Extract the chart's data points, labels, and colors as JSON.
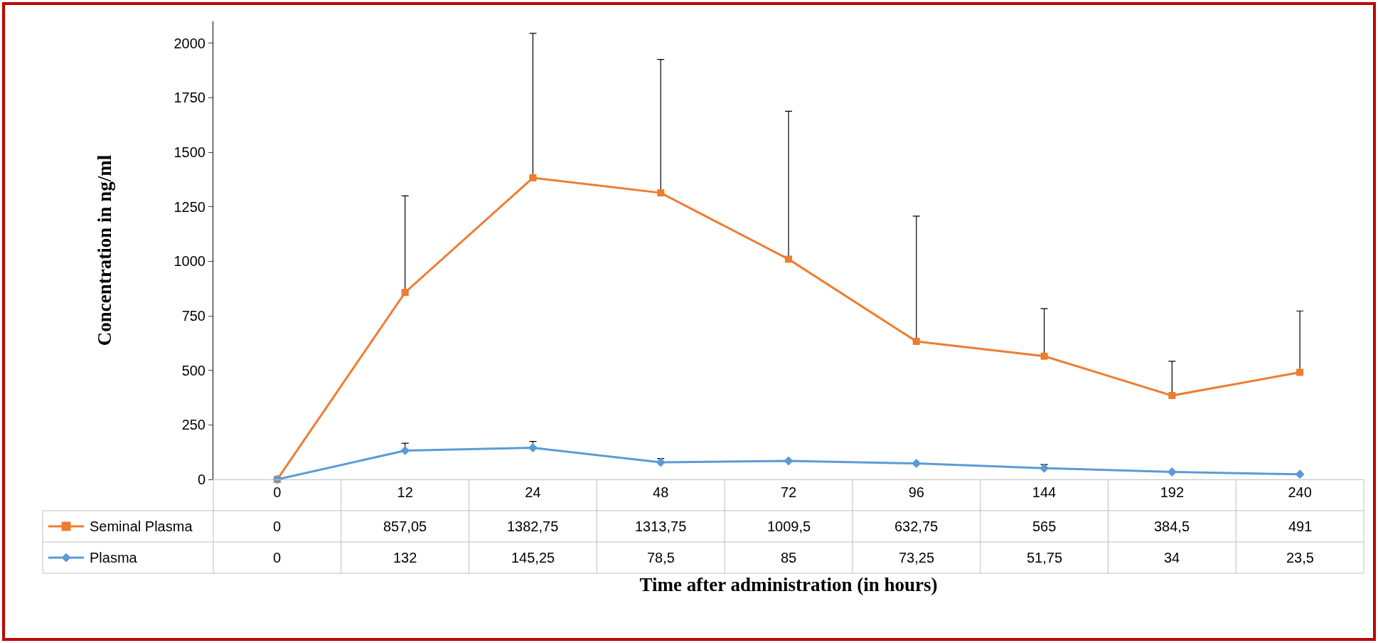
{
  "chart_data": {
    "type": "line",
    "xlabel": "Time after administration (in hours)",
    "ylabel": "Concentration in ng/ml",
    "categories": [
      "0",
      "12",
      "24",
      "48",
      "72",
      "96",
      "144",
      "192",
      "240"
    ],
    "series": [
      {
        "name": "Seminal Plasma",
        "color": "#ed7d31",
        "marker": "square",
        "values": [
          0,
          857.05,
          1382.75,
          1313.75,
          1009.5,
          632.75,
          565,
          384.5,
          491
        ],
        "value_labels": [
          "0",
          "857,05",
          "1382,75",
          "1313,75",
          "1009,5",
          "632,75",
          "565",
          "384,5",
          "491"
        ],
        "errors": [
          null,
          [
            857.05,
            1300
          ],
          [
            1382.75,
            2045
          ],
          [
            1313.75,
            1925
          ],
          [
            1009.5,
            1688
          ],
          [
            632.75,
            1207
          ],
          [
            565,
            783
          ],
          [
            384.5,
            542
          ],
          [
            491,
            772
          ]
        ]
      },
      {
        "name": "Plasma",
        "color": "#5b9bd5",
        "marker": "diamond",
        "values": [
          0,
          132,
          145.25,
          78.5,
          85,
          73.25,
          51.75,
          34,
          23.5
        ],
        "value_labels": [
          "0",
          "132",
          "145,25",
          "78,5",
          "85",
          "73,25",
          "51,75",
          "34",
          "23,5"
        ],
        "errors": [
          null,
          [
            132,
            166
          ],
          [
            145.25,
            174
          ],
          [
            78.5,
            96
          ],
          null,
          null,
          [
            51.75,
            68
          ],
          null,
          null
        ]
      }
    ],
    "legend": "bottom left",
    "ylim": [
      0,
      2100
    ],
    "yticks": [
      0,
      250,
      500,
      750,
      1000,
      1250,
      1500,
      1750,
      2000
    ]
  }
}
